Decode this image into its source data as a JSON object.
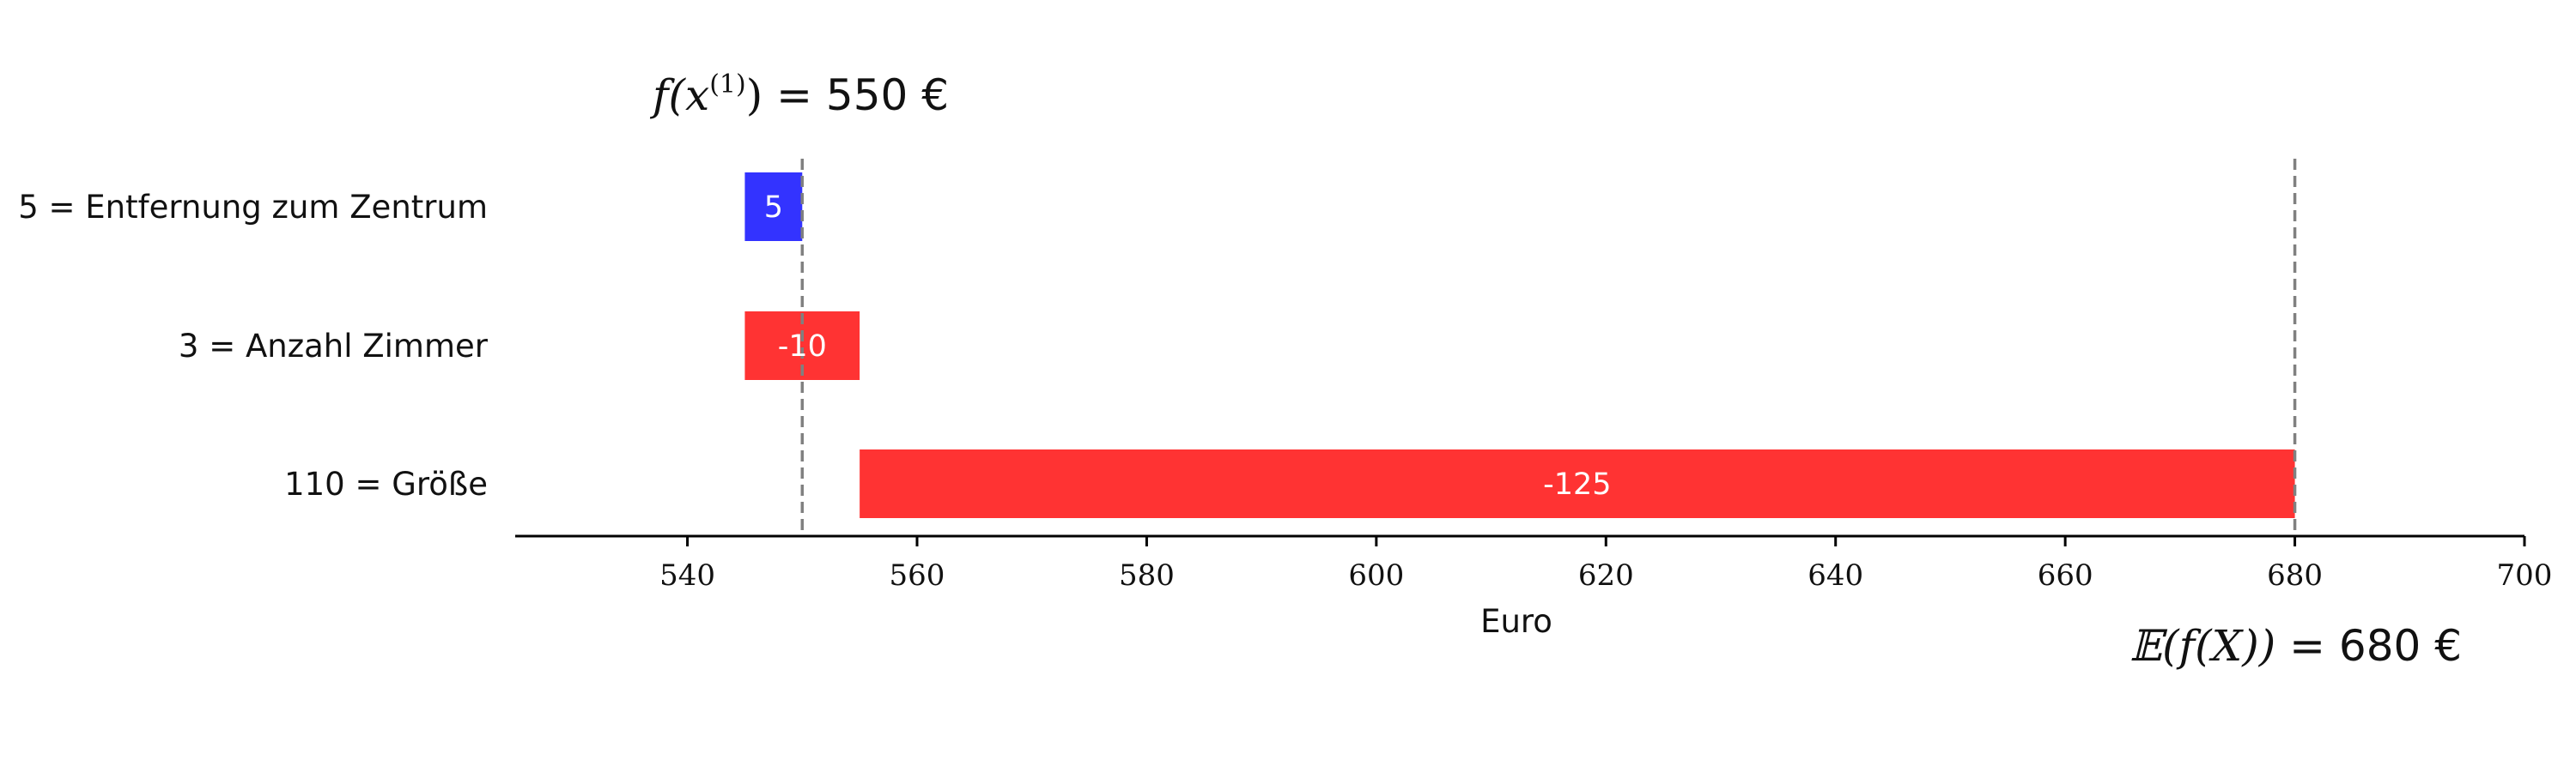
{
  "chart_data": {
    "type": "bar",
    "orientation": "horizontal",
    "style": "waterfall",
    "categories": [
      "5 = Entfernung zum Zentrum",
      "3 = Anzahl Zimmer",
      "110 = Größe"
    ],
    "bars": [
      {
        "category": "5 = Entfernung zum Zentrum",
        "label": "5",
        "value": 5,
        "start": 545,
        "end": 550,
        "color": "#3333ff"
      },
      {
        "category": "3 = Anzahl Zimmer",
        "label": "-10",
        "value": -10,
        "start": 545,
        "end": 555,
        "color": "#ff3333"
      },
      {
        "category": "110 = Größe",
        "label": "-125",
        "value": -125,
        "start": 555,
        "end": 680,
        "color": "#ff3333"
      }
    ],
    "xlabel": "Euro",
    "xlim": [
      525,
      700
    ],
    "xticks": [
      540,
      560,
      580,
      600,
      620,
      640,
      660,
      680,
      700
    ],
    "reference_lines": [
      {
        "x": 550,
        "style": "dashed",
        "annotation": {
          "math": "f(x",
          "superscript": "(1)",
          "close": ")",
          "text": " = 550 €"
        }
      },
      {
        "x": 680,
        "style": "dashed",
        "annotation": {
          "math": "𝔼(f(X))",
          "text": " = 680 €"
        }
      }
    ],
    "grid": false,
    "colors": {
      "positive": "#3333ff",
      "negative": "#ff3333",
      "reference": "#808080",
      "axis": "#000000"
    }
  }
}
